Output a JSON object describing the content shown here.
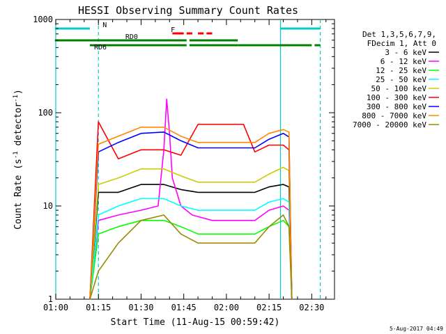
{
  "chart_data": {
    "type": "line",
    "title": "HESSI Observing Summary Count Rates",
    "xlabel": "Start Time (11-Aug-15 00:59:42)",
    "ylabel": "Count Rate (s⁻¹ detector⁻¹)",
    "ylabel_parts": {
      "a": "Count Rate (s",
      "b": "-1",
      "c": " detector",
      "d": "-1",
      "e": ")"
    },
    "yscale": "log",
    "ylim": [
      1,
      1000
    ],
    "xlim": [
      "01:00",
      "02:38"
    ],
    "xticks": [
      "01:00",
      "01:15",
      "01:30",
      "01:45",
      "02:00",
      "02:15",
      "02:30"
    ],
    "yticks": [
      "1",
      "10",
      "100",
      "1000"
    ],
    "legend_header": [
      "Det 1,3,5,6,7,9,",
      "FDecim 1, Att 0"
    ],
    "series": [
      {
        "name": "3 - 6 keV",
        "color": "#000000",
        "x": [
          "01:12",
          "01:15",
          "01:22",
          "01:30",
          "01:38",
          "01:44",
          "01:50",
          "02:06",
          "02:10",
          "02:15",
          "02:20",
          "02:22",
          "02:23"
        ],
        "y": [
          0,
          14,
          14,
          17,
          17,
          15,
          14,
          14,
          14,
          16,
          17,
          16,
          0
        ]
      },
      {
        "name": "6 - 12 keV",
        "color": "#ff00ff",
        "x": [
          "01:12",
          "01:15",
          "01:22",
          "01:30",
          "01:36",
          "01:38",
          "01:39",
          "01:40",
          "01:41",
          "01:44",
          "01:48",
          "01:55",
          "02:06",
          "02:10",
          "02:15",
          "02:20",
          "02:22",
          "02:23"
        ],
        "y": [
          0,
          7,
          8,
          9,
          10,
          40,
          140,
          60,
          20,
          10,
          8,
          7,
          7,
          7,
          9,
          10,
          9,
          0
        ]
      },
      {
        "name": "12 - 25 keV",
        "color": "#00ff00",
        "x": [
          "01:12",
          "01:15",
          "01:22",
          "01:30",
          "01:38",
          "01:44",
          "01:50",
          "02:06",
          "02:10",
          "02:15",
          "02:20",
          "02:22",
          "02:23"
        ],
        "y": [
          0,
          5,
          6,
          7,
          7,
          6,
          5,
          5,
          5,
          6,
          7,
          6,
          0
        ]
      },
      {
        "name": "25 - 50 keV",
        "color": "#00ffff",
        "x": [
          "01:12",
          "01:15",
          "01:22",
          "01:30",
          "01:38",
          "01:44",
          "01:50",
          "02:06",
          "02:10",
          "02:15",
          "02:20",
          "02:22",
          "02:23"
        ],
        "y": [
          0,
          8,
          10,
          12,
          12,
          10,
          9,
          9,
          9,
          11,
          12,
          11,
          0
        ]
      },
      {
        "name": "50 - 100 keV",
        "color": "#cccc00",
        "x": [
          "01:12",
          "01:15",
          "01:22",
          "01:30",
          "01:38",
          "01:44",
          "01:50",
          "02:06",
          "02:10",
          "02:15",
          "02:20",
          "02:22",
          "02:23"
        ],
        "y": [
          0,
          17,
          20,
          25,
          25,
          21,
          18,
          18,
          18,
          22,
          26,
          24,
          0
        ]
      },
      {
        "name": "100 - 300 keV",
        "color": "#ff0000",
        "x": [
          "01:12",
          "01:15",
          "01:22",
          "01:30",
          "01:38",
          "01:44",
          "01:50",
          "02:06",
          "02:10",
          "02:15",
          "02:20",
          "02:22",
          "02:23"
        ],
        "y": [
          0,
          80,
          32,
          40,
          40,
          35,
          75,
          75,
          38,
          45,
          45,
          40,
          0
        ]
      },
      {
        "name": "300 - 800 keV",
        "color": "#0000ff",
        "x": [
          "01:12",
          "01:15",
          "01:22",
          "01:30",
          "01:38",
          "01:44",
          "01:50",
          "02:06",
          "02:10",
          "02:15",
          "02:20",
          "02:22",
          "02:23"
        ],
        "y": [
          0,
          38,
          48,
          60,
          62,
          50,
          42,
          42,
          42,
          52,
          60,
          55,
          0
        ]
      },
      {
        "name": "800 - 7000 keV",
        "color": "#ff8800",
        "x": [
          "01:12",
          "01:15",
          "01:22",
          "01:30",
          "01:38",
          "01:44",
          "01:50",
          "02:06",
          "02:10",
          "02:15",
          "02:20",
          "02:22",
          "02:23"
        ],
        "y": [
          0,
          46,
          56,
          70,
          70,
          56,
          48,
          48,
          48,
          60,
          66,
          62,
          0
        ]
      },
      {
        "name": "7000 - 20000 keV",
        "color": "#998800",
        "x": [
          "01:12",
          "01:15",
          "01:22",
          "01:30",
          "01:38",
          "01:44",
          "01:50",
          "02:06",
          "02:10",
          "02:15",
          "02:20",
          "02:22",
          "02:23"
        ],
        "y": [
          0,
          2,
          4,
          7,
          8,
          5,
          4,
          4,
          4,
          6,
          8,
          6,
          0
        ]
      }
    ],
    "flags": [
      {
        "label": "N",
        "color": "#00cccc",
        "segments": [
          [
            "00:59:42",
            "01:12"
          ],
          [
            "02:19",
            "02:33"
          ]
        ],
        "label_x": "01:15"
      },
      {
        "label": "F",
        "color": "#ff0000",
        "segments": [
          [
            "01:41",
            "01:45"
          ],
          [
            "01:46",
            "01:48"
          ],
          [
            "01:50",
            "01:52"
          ],
          [
            "01:53",
            "01:55"
          ]
        ],
        "label_x": "01:39"
      },
      {
        "label": "RD0",
        "color": "#008000",
        "segments": [
          [
            "00:59:42",
            "01:46"
          ],
          [
            "01:47",
            "02:04"
          ]
        ],
        "label_x": "01:23"
      },
      {
        "label": "RD6",
        "color": "#008000",
        "segments": [
          [
            "01:12",
            "01:46"
          ],
          [
            "01:47",
            "02:04"
          ],
          [
            "02:04",
            "02:30"
          ],
          [
            "02:31",
            "02:33"
          ]
        ],
        "label_x": "01:12"
      }
    ],
    "vlines": [
      {
        "x": "01:00",
        "color": "#00cccc",
        "style": "solid"
      },
      {
        "x": "01:15",
        "color": "#00cccc",
        "style": "dashed"
      },
      {
        "x": "02:19",
        "color": "#00cccc",
        "style": "solid"
      },
      {
        "x": "02:33",
        "color": "#00cccc",
        "style": "dashed"
      }
    ]
  },
  "footer_stamp": "5-Aug-2017 04:49"
}
